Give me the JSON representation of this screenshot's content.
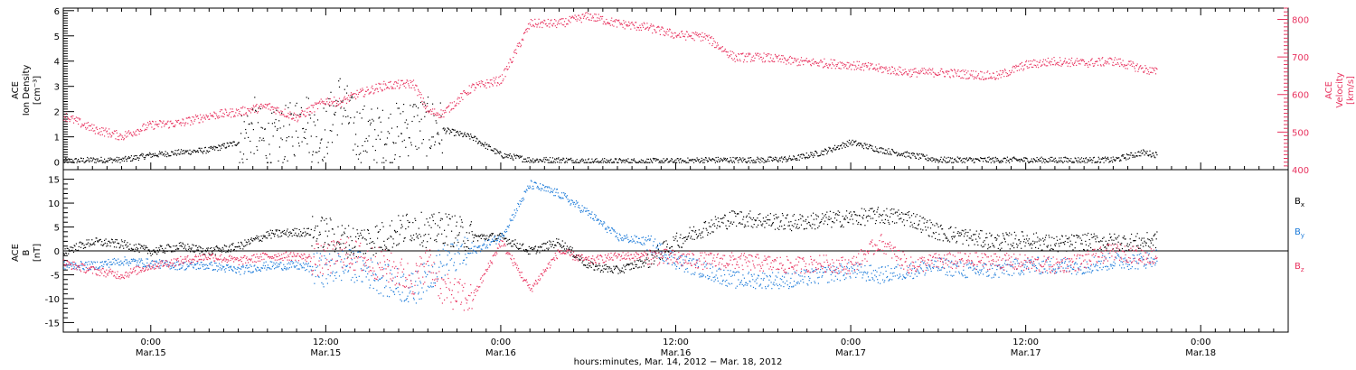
{
  "chart_data": [
    {
      "type": "scatter",
      "panel": "top",
      "ylabel_left": [
        "ACE",
        "Ion Density",
        "[cm⁻³]"
      ],
      "ylabel_right": [
        "ACE",
        "Velocity",
        "[km/s]"
      ],
      "ylim_left": [
        -0.3,
        6.1
      ],
      "ylim_right": [
        400,
        830
      ],
      "yticks_left": [
        "0",
        "1",
        "2",
        "3",
        "4",
        "5",
        "6"
      ],
      "yticks_right": [
        "400",
        "500",
        "600",
        "700",
        "800"
      ],
      "grid": false,
      "series": [
        {
          "color": "#000000",
          "axis": "left",
          "x_hours": [
            0,
            2,
            4,
            6,
            8,
            10,
            12,
            12.5,
            13,
            13.5,
            14,
            14.5,
            15,
            15.5,
            16,
            16.5,
            17,
            17.5,
            18,
            19,
            20,
            22,
            24,
            26,
            28,
            30,
            32,
            34,
            36,
            38,
            40,
            42,
            44,
            46,
            48,
            50,
            52,
            54,
            56,
            58,
            60,
            62,
            64,
            66,
            68,
            70,
            72,
            74,
            75
          ],
          "values": [
            0.05,
            0.1,
            0.1,
            0.3,
            0.4,
            0.5,
            0.8,
            1.0,
            1.5,
            1.0,
            0.7,
            0.9,
            1.0,
            1.2,
            1.5,
            2.0,
            1.2,
            1.0,
            1.3,
            2.5,
            1.2,
            1.0,
            1.5,
            1.3,
            1.0,
            0.3,
            0.1,
            0.1,
            0.05,
            0.05,
            0.05,
            0.05,
            0.1,
            0.1,
            0.1,
            0.15,
            0.4,
            0.8,
            0.5,
            0.3,
            0.1,
            0.1,
            0.1,
            0.1,
            0.1,
            0.1,
            0.1,
            0.4,
            0.3
          ]
        },
        {
          "color": "#e8335f",
          "axis": "right",
          "x_hours": [
            0,
            2,
            4,
            6,
            8,
            10,
            12,
            14,
            16,
            18,
            19,
            20,
            22,
            24,
            25,
            26,
            28,
            30,
            32,
            34,
            36,
            38,
            40,
            42,
            44,
            46,
            48,
            50,
            52,
            54,
            56,
            58,
            60,
            62,
            64,
            66,
            68,
            70,
            72,
            74,
            75
          ],
          "values": [
            545,
            510,
            490,
            520,
            525,
            545,
            555,
            570,
            540,
            585,
            580,
            600,
            625,
            630,
            555,
            550,
            620,
            640,
            790,
            790,
            810,
            790,
            780,
            760,
            755,
            700,
            700,
            690,
            685,
            680,
            670,
            660,
            660,
            655,
            650,
            680,
            690,
            685,
            690,
            670,
            660
          ]
        }
      ]
    },
    {
      "type": "scatter",
      "panel": "bottom",
      "ylabel": [
        "ACE",
        "B",
        "[nT]"
      ],
      "ylim": [
        -17,
        17
      ],
      "yticks": [
        "-15",
        "-10",
        "-5",
        "0",
        "5",
        "10",
        "15"
      ],
      "zero_line": true,
      "grid": false,
      "series": [
        {
          "name": "Bx",
          "color": "#000000",
          "x_hours": [
            0,
            2,
            4,
            6,
            8,
            10,
            12,
            14,
            16,
            18,
            19,
            20,
            22,
            24,
            25,
            26,
            28,
            30,
            32,
            34,
            36,
            38,
            40,
            42,
            44,
            46,
            48,
            50,
            52,
            54,
            56,
            58,
            60,
            62,
            64,
            66,
            68,
            70,
            72,
            74,
            75
          ],
          "values": [
            0,
            2,
            1.5,
            0,
            1,
            0,
            1,
            3.5,
            4,
            4,
            2.5,
            2,
            3,
            5.5,
            4,
            5,
            3,
            3,
            0,
            2,
            -3,
            -4,
            -2,
            2,
            5,
            7,
            6.5,
            6,
            6.5,
            7,
            7.5,
            7,
            4,
            3,
            2,
            2.5,
            1.5,
            2,
            2,
            2,
            2.5
          ]
        },
        {
          "name": "By",
          "color": "#1b7ad9",
          "x_hours": [
            0,
            2,
            4,
            6,
            8,
            10,
            12,
            14,
            16,
            18,
            19,
            20,
            22,
            24,
            25,
            26,
            28,
            30,
            32,
            34,
            36,
            38,
            40,
            42,
            44,
            46,
            48,
            50,
            52,
            54,
            56,
            58,
            60,
            62,
            64,
            66,
            68,
            70,
            72,
            74,
            75
          ],
          "values": [
            -3,
            -3,
            -2,
            -2.5,
            -3,
            -3,
            -4,
            -3,
            -3,
            -4,
            -3,
            -3,
            -6,
            -8,
            -5,
            -2,
            0,
            3,
            14,
            12,
            8,
            3,
            2,
            -2,
            -4,
            -6,
            -6,
            -6,
            -5,
            -4,
            -5,
            -4,
            -3,
            -4,
            -4,
            -3,
            -3,
            -3,
            -2,
            -2,
            -1
          ]
        },
        {
          "name": "Bz",
          "color": "#e8335f",
          "x_hours": [
            0,
            2,
            4,
            6,
            8,
            10,
            12,
            14,
            16,
            18,
            19,
            20,
            22,
            24,
            25,
            26,
            28,
            30,
            32,
            34,
            36,
            38,
            40,
            42,
            44,
            46,
            48,
            50,
            52,
            54,
            56,
            58,
            60,
            62,
            64,
            66,
            68,
            70,
            72,
            74,
            75
          ],
          "values": [
            -2.5,
            -4,
            -5,
            -3,
            -2,
            -1,
            -2,
            -1,
            -1,
            -2,
            0,
            -1,
            -3,
            -6,
            -2,
            -8,
            -10,
            2,
            -8,
            0,
            -2,
            -1,
            -1,
            -1.5,
            -2,
            -2,
            -2.5,
            -3,
            -2.5,
            -3,
            2,
            -3,
            -2,
            -2,
            -2,
            -2.5,
            -3,
            -2,
            0,
            -1,
            -1
          ]
        }
      ],
      "legend_labels": [
        {
          "text": "B",
          "sub": "x",
          "color": "#000000"
        },
        {
          "text": "B",
          "sub": "y",
          "color": "#1b7ad9"
        },
        {
          "text": "B",
          "sub": "z",
          "color": "#e8335f"
        }
      ]
    }
  ],
  "x_axis": {
    "xlim_hours": [
      0,
      84
    ],
    "ticks": [
      {
        "hour": 6,
        "time": "0:00",
        "date": "Mar.15"
      },
      {
        "hour": 18,
        "time": "12:00",
        "date": "Mar.15"
      },
      {
        "hour": 30,
        "time": "0:00",
        "date": "Mar.16"
      },
      {
        "hour": 42,
        "time": "12:00",
        "date": "Mar.16"
      },
      {
        "hour": 54,
        "time": "0:00",
        "date": "Mar.17"
      },
      {
        "hour": 66,
        "time": "12:00",
        "date": "Mar.17"
      },
      {
        "hour": 78,
        "time": "0:00",
        "date": "Mar.18"
      }
    ],
    "title": "hours:minutes, Mar. 14, 2012 − Mar. 18, 2012"
  }
}
